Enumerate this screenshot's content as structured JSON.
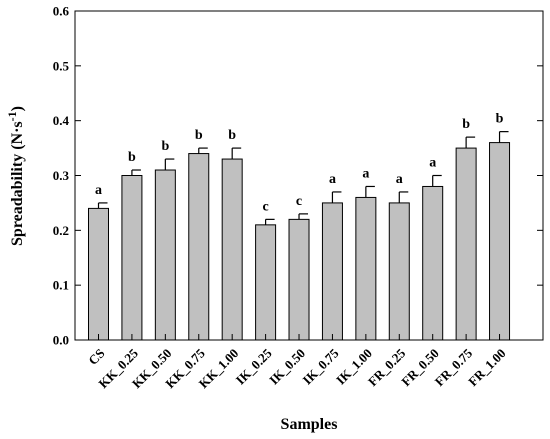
{
  "chart_data": {
    "type": "bar",
    "categories": [
      "CS",
      "KK_0.25",
      "KK_0.50",
      "KK_0.75",
      "KK_1.00",
      "IK_0.25",
      "IK_0.50",
      "IK_0.75",
      "IK_1.00",
      "FR_0.25",
      "FR_0.50",
      "FR_0.75",
      "FR_1.00"
    ],
    "values": [
      0.24,
      0.3,
      0.31,
      0.34,
      0.33,
      0.21,
      0.22,
      0.25,
      0.26,
      0.25,
      0.28,
      0.35,
      0.36
    ],
    "errors": [
      0.01,
      0.01,
      0.02,
      0.01,
      0.02,
      0.01,
      0.01,
      0.02,
      0.02,
      0.02,
      0.02,
      0.02,
      0.02
    ],
    "significance": [
      "a",
      "b",
      "b",
      "b",
      "b",
      "c",
      "c",
      "a",
      "a",
      "a",
      "a",
      "b",
      "b"
    ],
    "xlabel": "Samples",
    "ylabel_main": "Spreadability (N·s",
    "ylabel_sup": "-1",
    "ylabel_close": ")",
    "ylim": [
      0.0,
      0.6
    ],
    "yticks": [
      "0.0",
      "0.1",
      "0.2",
      "0.3",
      "0.4",
      "0.5",
      "0.6"
    ],
    "grid": false,
    "colors": {
      "bar": "#c0c0c0",
      "stroke": "#000000"
    }
  }
}
